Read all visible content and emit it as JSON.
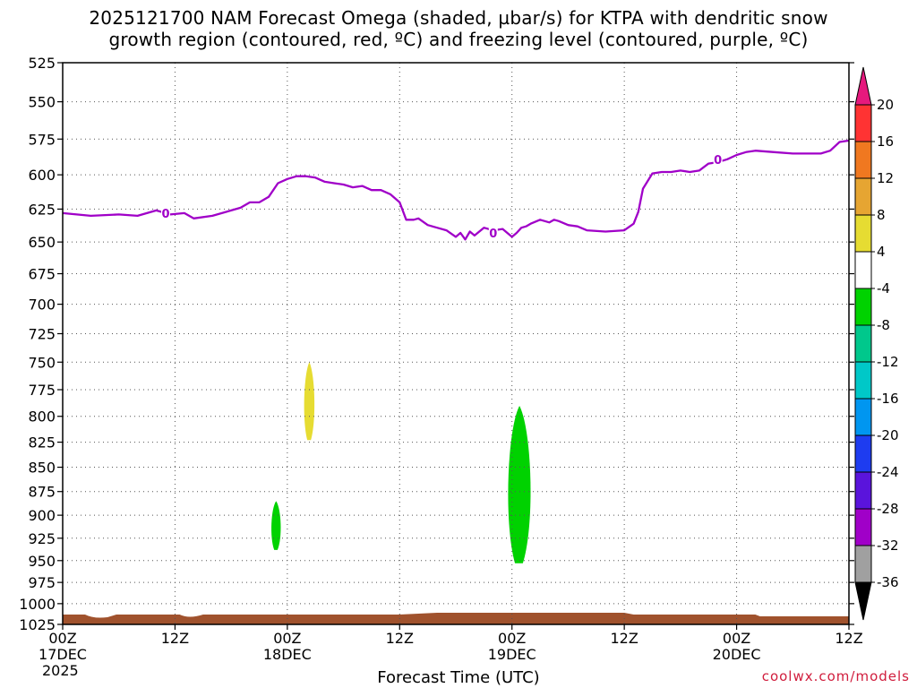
{
  "title": {
    "line1": "2025121700 NAM Forecast Omega (shaded, µbar/s) for KTPA with dendritic snow",
    "line2": "growth region (contoured, red, ºC) and freezing level (contoured, purple, ºC)"
  },
  "credit": "coolwx.com/models",
  "chart_data": {
    "type": "contour-time-height",
    "xlabel": "Forecast Time (UTC)",
    "ylabel": "",
    "x_ticks": [
      {
        "hour": 0,
        "label": "00Z",
        "sub": "17DEC",
        "sub2": "2025"
      },
      {
        "hour": 12,
        "label": "12Z",
        "sub": "",
        "sub2": ""
      },
      {
        "hour": 24,
        "label": "00Z",
        "sub": "18DEC",
        "sub2": ""
      },
      {
        "hour": 36,
        "label": "12Z",
        "sub": "",
        "sub2": ""
      },
      {
        "hour": 48,
        "label": "00Z",
        "sub": "19DEC",
        "sub2": ""
      },
      {
        "hour": 60,
        "label": "12Z",
        "sub": "",
        "sub2": ""
      },
      {
        "hour": 72,
        "label": "00Z",
        "sub": "20DEC",
        "sub2": ""
      },
      {
        "hour": 84,
        "label": "12Z",
        "sub": "",
        "sub2": ""
      }
    ],
    "xlim": [
      0,
      84
    ],
    "y_ticks": [
      525,
      550,
      575,
      600,
      625,
      650,
      675,
      700,
      725,
      750,
      775,
      800,
      825,
      850,
      875,
      900,
      925,
      950,
      975,
      1000,
      1025
    ],
    "ylim": [
      525,
      1025
    ],
    "y_scale": "log-pressure",
    "grid": true,
    "freezing_level": {
      "label": "0",
      "color": "#a000c8",
      "label_positions": [
        [
          11.0,
          628
        ],
        [
          46.0,
          643
        ],
        [
          70.0,
          589
        ]
      ],
      "points": [
        [
          0,
          628
        ],
        [
          3,
          630
        ],
        [
          6,
          629
        ],
        [
          8,
          630
        ],
        [
          10,
          626
        ],
        [
          11.5,
          629
        ],
        [
          13,
          628
        ],
        [
          14,
          632
        ],
        [
          16,
          630
        ],
        [
          18,
          626
        ],
        [
          19,
          624
        ],
        [
          20,
          620
        ],
        [
          21,
          620
        ],
        [
          22,
          616
        ],
        [
          23,
          606
        ],
        [
          24,
          603
        ],
        [
          25,
          601
        ],
        [
          26,
          601
        ],
        [
          27,
          602
        ],
        [
          28,
          605
        ],
        [
          29,
          606
        ],
        [
          30,
          607
        ],
        [
          31,
          609
        ],
        [
          32,
          608
        ],
        [
          33,
          611
        ],
        [
          34,
          611
        ],
        [
          35,
          614
        ],
        [
          36,
          620
        ],
        [
          36.7,
          633
        ],
        [
          37.5,
          633
        ],
        [
          38,
          632
        ],
        [
          39,
          637
        ],
        [
          40,
          639
        ],
        [
          41,
          641
        ],
        [
          42,
          646
        ],
        [
          42.5,
          643
        ],
        [
          43,
          648
        ],
        [
          43.5,
          642
        ],
        [
          44,
          645
        ],
        [
          45,
          639
        ],
        [
          46,
          641
        ],
        [
          47,
          640
        ],
        [
          48,
          646
        ],
        [
          48.5,
          643
        ],
        [
          49,
          639
        ],
        [
          49.5,
          638
        ],
        [
          50,
          636
        ],
        [
          51,
          633
        ],
        [
          52,
          635
        ],
        [
          52.5,
          633
        ],
        [
          53,
          634
        ],
        [
          54,
          637
        ],
        [
          55,
          638
        ],
        [
          56,
          641
        ],
        [
          58,
          642
        ],
        [
          60,
          641
        ],
        [
          61,
          636
        ],
        [
          61.5,
          627
        ],
        [
          62,
          610
        ],
        [
          63,
          599
        ],
        [
          64,
          598
        ],
        [
          65,
          598
        ],
        [
          66,
          597
        ],
        [
          67,
          598
        ],
        [
          68,
          597
        ],
        [
          69,
          592
        ],
        [
          70,
          591
        ],
        [
          71,
          589
        ],
        [
          72,
          586
        ],
        [
          73,
          584
        ],
        [
          74,
          583
        ],
        [
          76,
          584
        ],
        [
          78,
          585
        ],
        [
          80,
          585
        ],
        [
          81,
          585
        ],
        [
          82,
          583
        ],
        [
          83,
          577
        ],
        [
          84,
          576
        ]
      ]
    },
    "omega_shading": [
      {
        "color": "#e6dc32",
        "range": [
          4,
          8
        ],
        "time": [
          25.8,
          26.9
        ],
        "pressure": [
          750,
          823
        ]
      },
      {
        "color": "#00d200",
        "range": [
          -8,
          -4
        ],
        "time": [
          22.3,
          23.3
        ],
        "pressure": [
          885,
          938
        ]
      },
      {
        "color": "#00d200",
        "range": [
          -8,
          -4
        ],
        "time": [
          47.6,
          50.0
        ],
        "pressure": [
          790,
          953
        ]
      }
    ],
    "terrain_pressure": 1013,
    "terrain_color": "#a0522d",
    "colorbar": {
      "labels": [
        "20",
        "16",
        "12",
        "8",
        "4",
        "-4",
        "-8",
        "-12",
        "-16",
        "-20",
        "-24",
        "-28",
        "-32",
        "-36"
      ],
      "colors": [
        "#ff3333",
        "#f07820",
        "#e6a532",
        "#e6dc32",
        "#ffffff",
        "#00d200",
        "#00c88c",
        "#00c8c8",
        "#0096f0",
        "#1e3cf0",
        "#5a14dc",
        "#a000c8",
        "#a0a0a0"
      ],
      "top_triangle": "#e6197d",
      "bottom_triangle": "#000000"
    }
  }
}
